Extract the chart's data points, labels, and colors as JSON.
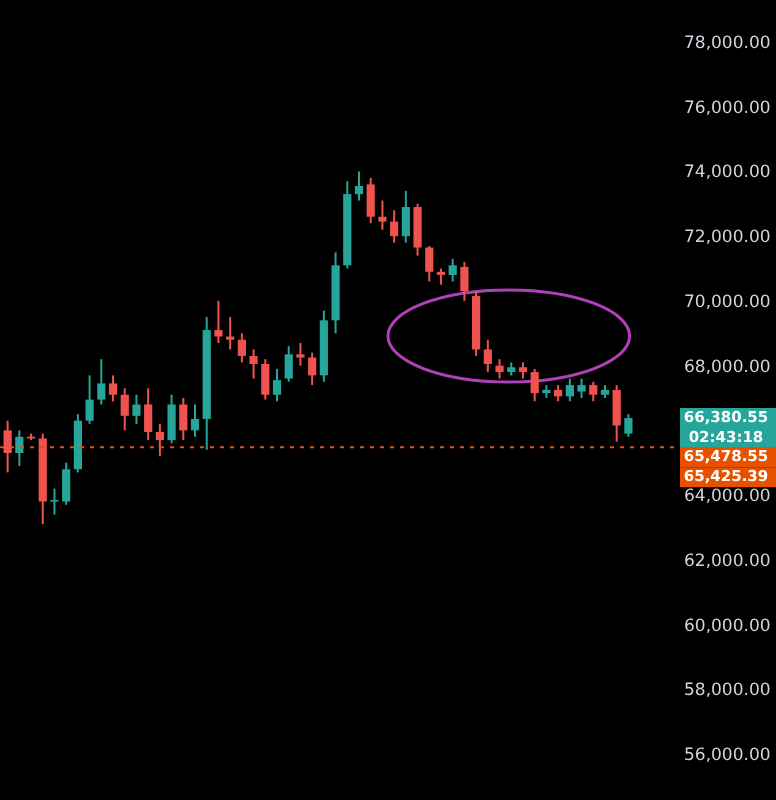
{
  "chart_data": {
    "type": "candlestick",
    "categories": [
      null,
      null,
      null,
      null,
      null,
      null,
      null,
      null,
      null,
      null,
      null,
      null,
      null,
      null,
      null,
      null,
      null,
      null,
      null,
      null,
      null,
      null,
      null,
      null,
      null,
      null,
      null,
      null,
      null,
      null,
      null,
      null,
      null,
      null,
      null,
      null,
      null,
      null,
      null,
      null,
      null,
      null,
      null,
      null,
      null,
      null,
      null,
      null,
      null,
      null,
      null,
      null,
      null,
      null
    ],
    "ohlc": [
      [
        66000,
        66300,
        64700,
        65300
      ],
      [
        65300,
        66000,
        64900,
        65800
      ],
      [
        65800,
        65900,
        65700,
        65750
      ],
      [
        65750,
        65900,
        63100,
        63800
      ],
      [
        63800,
        64200,
        63400,
        63850
      ],
      [
        63800,
        65000,
        63700,
        64800
      ],
      [
        64800,
        66500,
        64700,
        66300
      ],
      [
        66300,
        67700,
        66200,
        66950
      ],
      [
        66950,
        68200,
        66800,
        67450
      ],
      [
        67450,
        67700,
        66900,
        67100
      ],
      [
        67100,
        67300,
        66000,
        66450
      ],
      [
        66450,
        67100,
        66200,
        66800
      ],
      [
        66800,
        67300,
        65700,
        65950
      ],
      [
        65950,
        66200,
        65200,
        65700
      ],
      [
        65700,
        67100,
        65600,
        66800
      ],
      [
        66800,
        67000,
        65700,
        66000
      ],
      [
        66000,
        66800,
        65800,
        66350
      ],
      [
        66350,
        69500,
        65400,
        69100
      ],
      [
        69100,
        70000,
        68700,
        68900
      ],
      [
        68900,
        69500,
        68500,
        68800
      ],
      [
        68800,
        69000,
        68100,
        68300
      ],
      [
        68300,
        68500,
        67600,
        68050
      ],
      [
        68050,
        68200,
        66950,
        67100
      ],
      [
        67100,
        67900,
        66900,
        67550
      ],
      [
        67600,
        68600,
        67500,
        68350
      ],
      [
        68350,
        68700,
        68000,
        68250
      ],
      [
        68250,
        68400,
        67400,
        67700
      ],
      [
        67700,
        69700,
        67500,
        69400
      ],
      [
        69400,
        71500,
        69000,
        71100
      ],
      [
        71100,
        73700,
        71000,
        73300
      ],
      [
        73300,
        74000,
        73100,
        73550
      ],
      [
        73600,
        73800,
        72400,
        72600
      ],
      [
        72600,
        73100,
        72200,
        72450
      ],
      [
        72450,
        72800,
        71800,
        72000
      ],
      [
        72000,
        73400,
        71800,
        72900
      ],
      [
        72900,
        73000,
        71400,
        71650
      ],
      [
        71650,
        71700,
        70600,
        70900
      ],
      [
        70900,
        71000,
        70500,
        70800
      ],
      [
        70800,
        71300,
        70600,
        71100
      ],
      [
        71050,
        71200,
        70000,
        70300
      ],
      [
        70150,
        70300,
        68300,
        68500
      ],
      [
        68500,
        68800,
        67800,
        68050
      ],
      [
        68000,
        68200,
        67600,
        67800
      ],
      [
        67800,
        68100,
        67700,
        67950
      ],
      [
        67950,
        68100,
        67600,
        67800
      ],
      [
        67800,
        67900,
        66900,
        67150
      ],
      [
        67150,
        67400,
        67000,
        67250
      ],
      [
        67250,
        67400,
        66900,
        67050
      ],
      [
        67050,
        67600,
        66900,
        67400
      ],
      [
        67200,
        67600,
        67000,
        67400
      ],
      [
        67400,
        67500,
        66900,
        67100
      ],
      [
        67100,
        67400,
        67000,
        67250
      ],
      [
        67250,
        67400,
        65650,
        66150
      ],
      [
        65900,
        66500,
        65800,
        66380.55
      ]
    ],
    "colors": [
      "#ef5350",
      "#26a69a",
      "#ef5350",
      "#ef5350",
      "#26a69a",
      "#26a69a",
      "#26a69a",
      "#26a69a",
      "#26a69a",
      "#ef5350",
      "#ef5350",
      "#26a69a",
      "#ef5350",
      "#ef5350",
      "#26a69a",
      "#ef5350",
      "#26a69a",
      "#26a69a",
      "#ef5350",
      "#ef5350",
      "#ef5350",
      "#ef5350",
      "#ef5350",
      "#26a69a",
      "#26a69a",
      "#ef5350",
      "#ef5350",
      "#26a69a",
      "#26a69a",
      "#26a69a",
      "#26a69a",
      "#ef5350",
      "#ef5350",
      "#ef5350",
      "#26a69a",
      "#ef5350",
      "#ef5350",
      "#ef5350",
      "#26a69a",
      "#ef5350",
      "#ef5350",
      "#ef5350",
      "#ef5350",
      "#26a69a",
      "#ef5350",
      "#ef5350",
      "#26a69a",
      "#ef5350",
      "#26a69a",
      "#26a69a",
      "#ef5350",
      "#26a69a",
      "#ef5350",
      "#26a69a"
    ],
    "ylim": [
      56000,
      78000
    ],
    "yticks": [
      {
        "value": 56000,
        "label": "56,000.00"
      },
      {
        "value": 58000,
        "label": "58,000.00"
      },
      {
        "value": 60000,
        "label": "60,000.00"
      },
      {
        "value": 62000,
        "label": "62,000.00"
      },
      {
        "value": 64000,
        "label": "64,000.00"
      },
      {
        "value": 68000,
        "label": "68,000.00"
      },
      {
        "value": 70000,
        "label": "70,000.00"
      },
      {
        "value": 72000,
        "label": "72,000.00"
      },
      {
        "value": 74000,
        "label": "74,000.00"
      },
      {
        "value": 76000,
        "label": "76,000.00"
      },
      {
        "value": 78000,
        "label": "78,000.00"
      }
    ],
    "ref_lines": [
      {
        "axis": "y",
        "value": 65478.55,
        "label": "65,478.55",
        "color": "#e65100",
        "line_style": "dotted"
      }
    ],
    "annotations": [
      "66,380.55",
      "02:43:18",
      "65,425.39"
    ],
    "tick_labels": "y",
    "grid": false
  }
}
